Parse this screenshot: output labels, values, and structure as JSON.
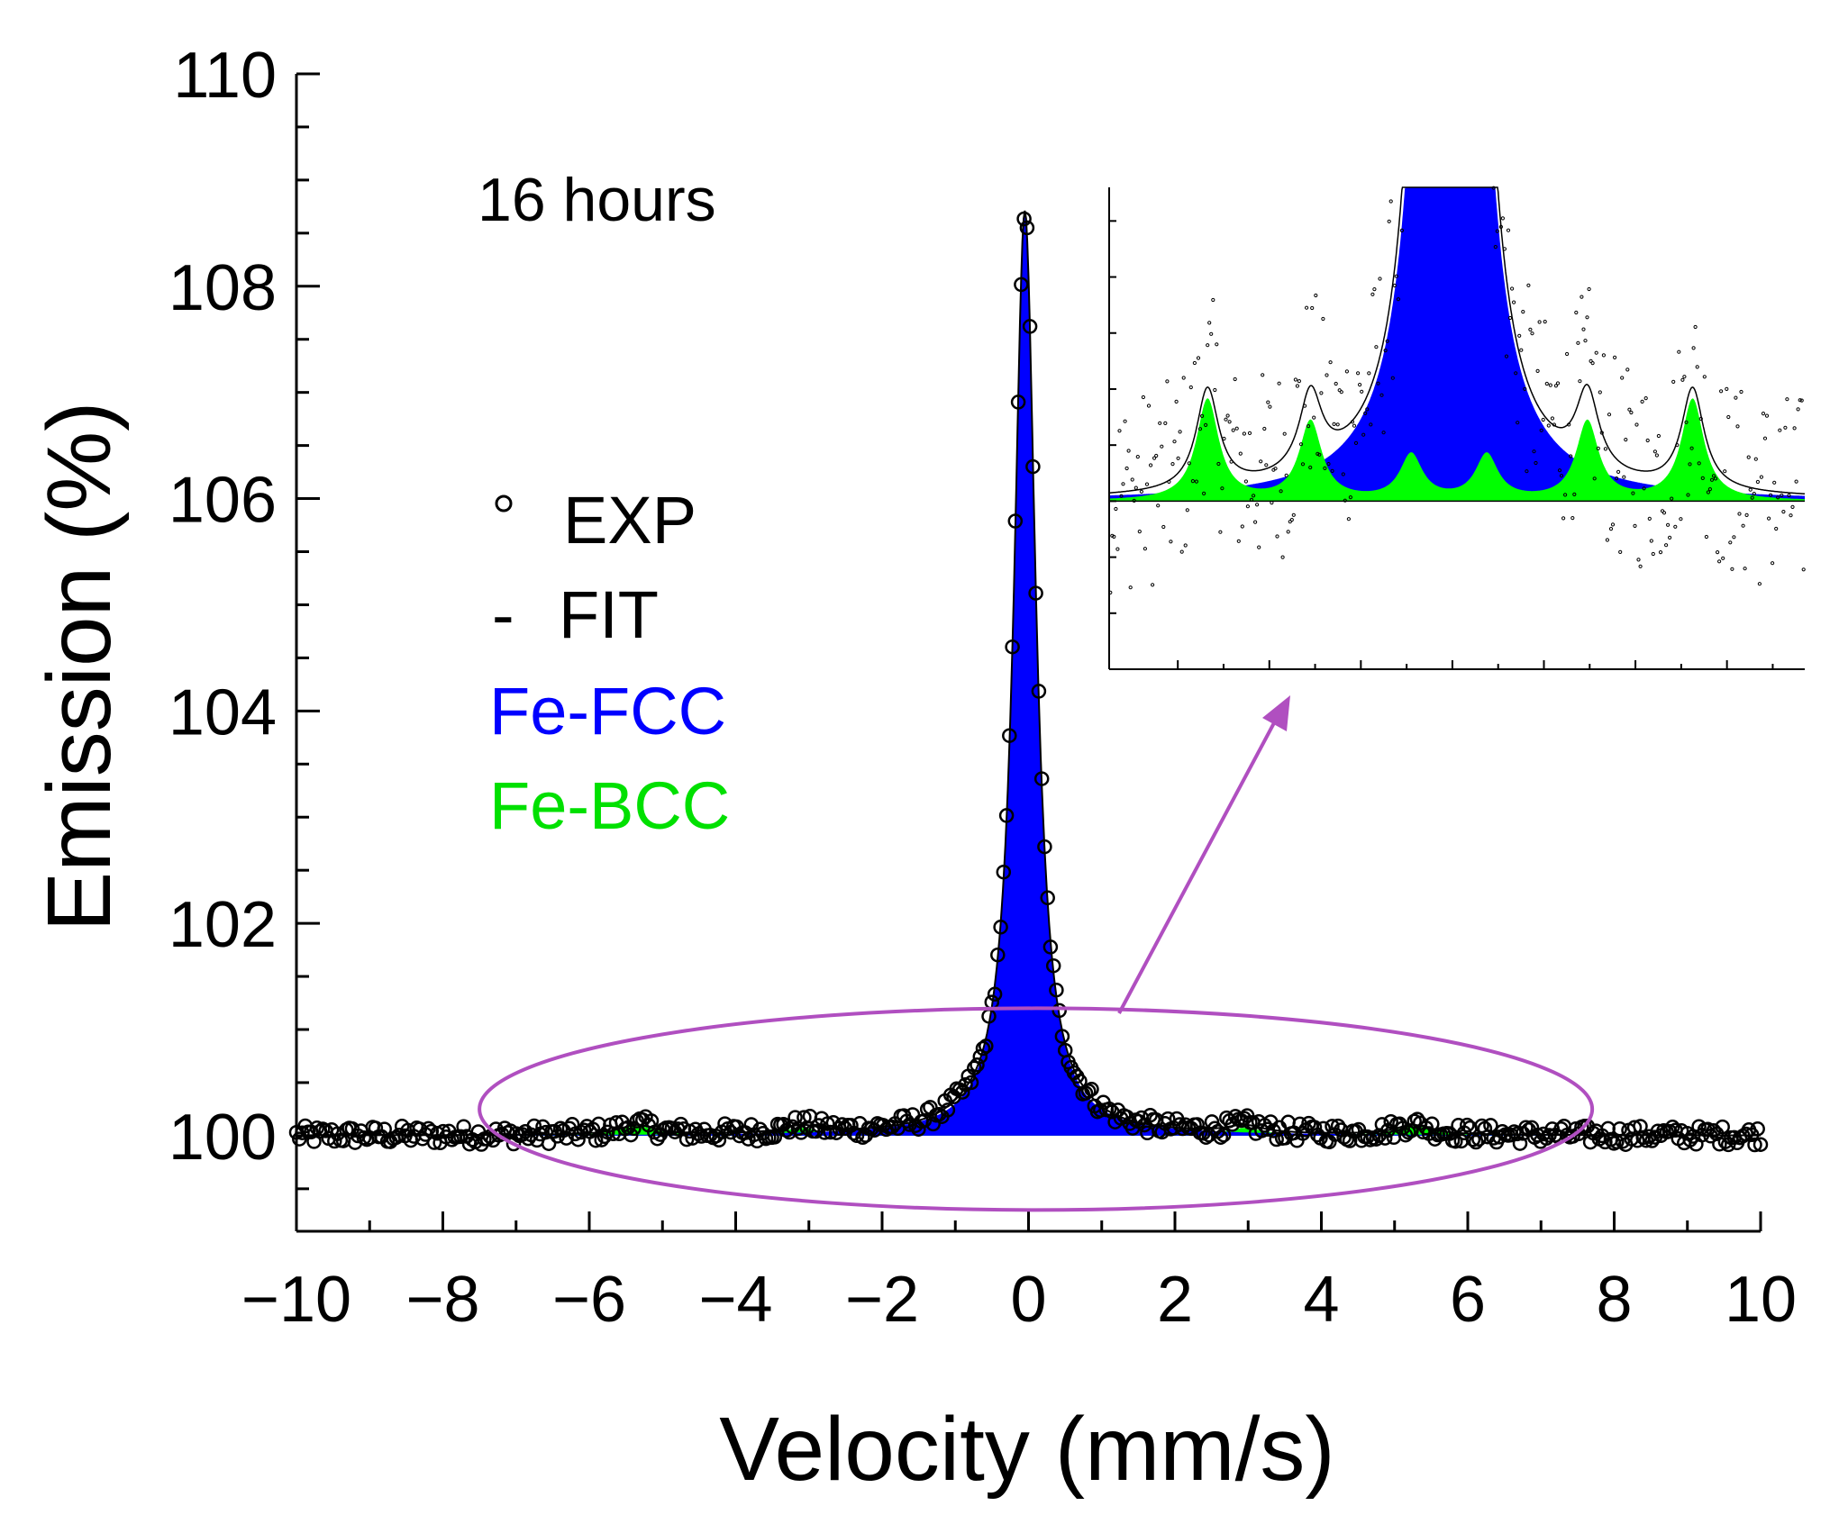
{
  "chart_data": {
    "type": "scatter",
    "title": "",
    "annotation": "16 hours",
    "xlabel": "Velocity (mm/s)",
    "ylabel": "Emission (%)",
    "xlim": [
      -10,
      10
    ],
    "ylim": [
      99.1,
      110
    ],
    "x_ticks": [
      -10,
      -8,
      -6,
      -4,
      -2,
      0,
      2,
      4,
      6,
      8,
      10
    ],
    "x_tick_labels": [
      "−10",
      "−8",
      "−6",
      "−4",
      "−2",
      "0",
      "2",
      "4",
      "6",
      "8",
      "10"
    ],
    "y_ticks": [
      100,
      102,
      104,
      106,
      108,
      110
    ],
    "y_tick_labels": [
      "100",
      "102",
      "104",
      "106",
      "108",
      "110"
    ],
    "legend": {
      "position": "center-left",
      "entries": [
        {
          "symbol": "○",
          "label": "EXP",
          "color": "#000000"
        },
        {
          "symbol": "-",
          "label": "FIT",
          "color": "#000000"
        },
        {
          "label": "Fe-FCC",
          "color": "#0000ff"
        },
        {
          "label": "Fe-BCC",
          "color": "#00ff00"
        }
      ]
    },
    "series": [
      {
        "name": "Fe-FCC",
        "kind": "lorentzian-singlet",
        "color": "#0000ff",
        "center": -0.05,
        "amplitude": 8.7,
        "hwhm": 0.18
      },
      {
        "name": "Fe-BCC",
        "kind": "lorentzian-sextet",
        "color": "#00ff00",
        "centers": [
          -5.35,
          -3.1,
          -0.9,
          0.75,
          2.95,
          5.25
        ],
        "amplitudes": [
          0.09,
          0.07,
          0.04,
          0.04,
          0.07,
          0.09
        ],
        "hwhm": 0.3
      },
      {
        "name": "EXP",
        "kind": "points",
        "color": "#000000",
        "x_start": -10,
        "x_end": 10,
        "n_points": 500,
        "baseline": 100,
        "noise_amplitude": 0.09
      }
    ],
    "highlight": {
      "shape": "ellipse",
      "color": "#b04fc0",
      "x_range": [
        -7.5,
        7.7
      ],
      "y_range": [
        99.3,
        101.2
      ]
    },
    "inset": {
      "description_free": true,
      "zoom_of": "highlighted region"
    }
  }
}
